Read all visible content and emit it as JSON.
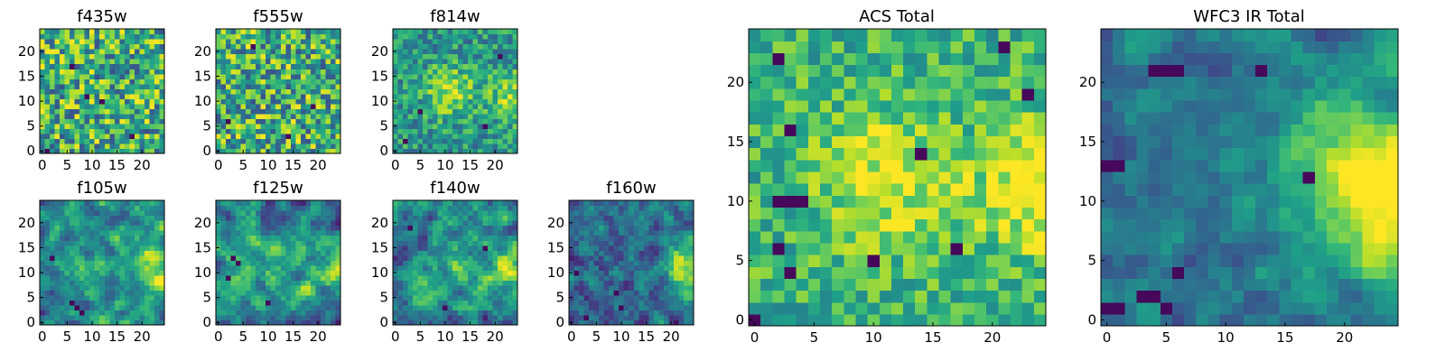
{
  "colormap": {
    "name": "viridis",
    "stops": [
      "#440154",
      "#482878",
      "#3e4a89",
      "#31688e",
      "#26828e",
      "#1f9e89",
      "#35b779",
      "#6ece58",
      "#b5de2b",
      "#fde725"
    ]
  },
  "chart_data": [
    {
      "type": "heatmap",
      "title": "f435w",
      "size": 25,
      "pattern": "noise",
      "seed": 11,
      "xlim": [
        0,
        24
      ],
      "ylim": [
        0,
        24
      ],
      "xticks": [
        "0",
        "5",
        "10",
        "15",
        "20"
      ],
      "yticks": [
        "0",
        "5",
        "10",
        "15",
        "20"
      ],
      "dark_spots": [
        [
          9,
          11
        ],
        [
          12,
          10
        ],
        [
          1,
          0
        ],
        [
          18,
          3
        ],
        [
          6,
          17
        ]
      ]
    },
    {
      "type": "heatmap",
      "title": "f555w",
      "size": 25,
      "pattern": "noise",
      "seed": 23,
      "xlim": [
        0,
        24
      ],
      "ylim": [
        0,
        24
      ],
      "xticks": [
        "0",
        "5",
        "10",
        "15",
        "20"
      ],
      "yticks": [
        "0",
        "5",
        "10",
        "15",
        "20"
      ],
      "dark_spots": [
        [
          14,
          3
        ],
        [
          2,
          6
        ],
        [
          19,
          9
        ],
        [
          7,
          21
        ]
      ]
    },
    {
      "type": "heatmap",
      "title": "f814w",
      "size": 25,
      "pattern": "blob",
      "seed": 37,
      "xlim": [
        0,
        24
      ],
      "ylim": [
        0,
        24
      ],
      "xticks": [
        "0",
        "5",
        "10",
        "15",
        "20"
      ],
      "yticks": [
        "0",
        "5",
        "10",
        "15",
        "20"
      ],
      "dark_spots": [
        [
          2,
          2
        ],
        [
          5,
          8
        ],
        [
          18,
          5
        ],
        [
          21,
          19
        ]
      ]
    },
    {
      "type": "heatmap",
      "title": "f105w",
      "size": 25,
      "pattern": "smooth",
      "seed": 41,
      "xlim": [
        0,
        24
      ],
      "ylim": [
        0,
        24
      ],
      "xticks": [
        "0",
        "5",
        "10",
        "15",
        "20"
      ],
      "yticks": [
        "0",
        "5",
        "10",
        "15",
        "20"
      ],
      "dark_spots": [
        [
          7,
          3
        ],
        [
          8,
          2
        ],
        [
          6,
          4
        ],
        [
          2,
          13
        ]
      ]
    },
    {
      "type": "heatmap",
      "title": "f125w",
      "size": 25,
      "pattern": "smooth",
      "seed": 53,
      "xlim": [
        0,
        24
      ],
      "ylim": [
        0,
        24
      ],
      "xticks": [
        "0",
        "5",
        "10",
        "15",
        "20"
      ],
      "yticks": [
        "0",
        "5",
        "10",
        "15",
        "20"
      ],
      "dark_spots": [
        [
          3,
          13
        ],
        [
          4,
          12
        ],
        [
          10,
          4
        ],
        [
          2,
          9
        ]
      ]
    },
    {
      "type": "heatmap",
      "title": "f140w",
      "size": 25,
      "pattern": "smooth",
      "seed": 67,
      "xlim": [
        0,
        24
      ],
      "ylim": [
        0,
        24
      ],
      "xticks": [
        "0",
        "5",
        "10",
        "15",
        "20"
      ],
      "yticks": [
        "0",
        "5",
        "10",
        "15",
        "20"
      ],
      "dark_spots": [
        [
          10,
          3
        ],
        [
          3,
          19
        ],
        [
          18,
          15
        ]
      ]
    },
    {
      "type": "heatmap",
      "title": "f160w",
      "size": 25,
      "pattern": "dark",
      "seed": 79,
      "xlim": [
        0,
        24
      ],
      "ylim": [
        0,
        24
      ],
      "xticks": [
        "0",
        "5",
        "10",
        "15",
        "20"
      ],
      "yticks": [
        "0",
        "5",
        "10",
        "15",
        "20"
      ],
      "dark_spots": [
        [
          1,
          10
        ],
        [
          9,
          6
        ],
        [
          3,
          1
        ],
        [
          10,
          3
        ]
      ]
    },
    {
      "type": "heatmap",
      "title": "ACS Total",
      "size": 25,
      "pattern": "acs",
      "seed": 97,
      "xlim": [
        0,
        24
      ],
      "ylim": [
        0,
        24
      ],
      "xticks": [
        "0",
        "5",
        "10",
        "15",
        "20"
      ],
      "yticks": [
        "0",
        "5",
        "10",
        "15",
        "20"
      ],
      "dark_spots": [
        [
          0,
          0
        ],
        [
          2,
          6
        ],
        [
          3,
          4
        ],
        [
          2,
          10
        ],
        [
          3,
          10
        ],
        [
          4,
          10
        ],
        [
          3,
          16
        ],
        [
          21,
          23
        ],
        [
          2,
          22
        ],
        [
          14,
          14
        ],
        [
          23,
          19
        ],
        [
          17,
          6
        ],
        [
          10,
          5
        ]
      ]
    },
    {
      "type": "heatmap",
      "title": "WFC3 IR Total",
      "size": 25,
      "pattern": "ir",
      "seed": 113,
      "xlim": [
        0,
        24
      ],
      "ylim": [
        0,
        24
      ],
      "xticks": [
        "0",
        "5",
        "10",
        "15",
        "20"
      ],
      "yticks": [
        "0",
        "5",
        "10",
        "15",
        "20"
      ],
      "dark_spots": [
        [
          0,
          1
        ],
        [
          1,
          1
        ],
        [
          3,
          2
        ],
        [
          4,
          2
        ],
        [
          5,
          1
        ],
        [
          0,
          13
        ],
        [
          1,
          13
        ],
        [
          4,
          21
        ],
        [
          5,
          21
        ],
        [
          6,
          21
        ],
        [
          17,
          12
        ],
        [
          6,
          4
        ],
        [
          13,
          21
        ]
      ]
    }
  ]
}
